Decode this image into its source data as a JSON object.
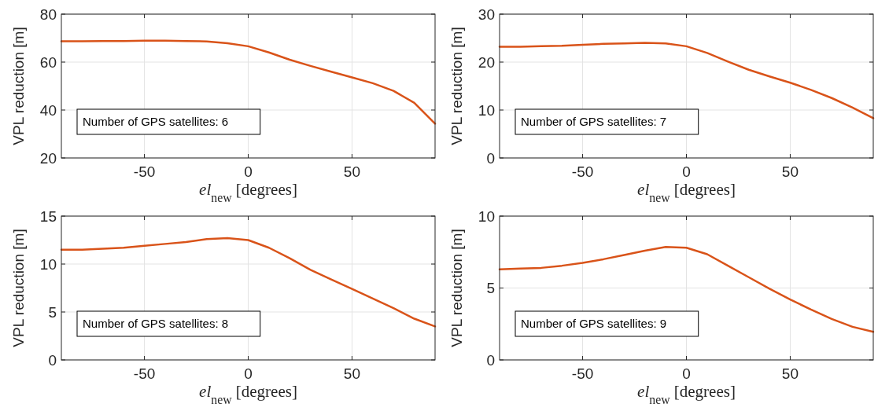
{
  "chart_data": [
    {
      "type": "line",
      "x": [
        -90,
        -80,
        -70,
        -60,
        -50,
        -40,
        -30,
        -20,
        -10,
        0,
        10,
        20,
        30,
        40,
        50,
        60,
        70,
        80,
        90
      ],
      "series": [
        {
          "color": "#d95319",
          "values": [
            68.7,
            68.7,
            68.8,
            68.8,
            68.9,
            68.9,
            68.8,
            68.6,
            67.9,
            66.6,
            64,
            61,
            58.4,
            56,
            53.6,
            51.2,
            48,
            43,
            34.3
          ]
        }
      ],
      "xlim": [
        -90,
        90
      ],
      "xticks": [
        -50,
        0,
        50
      ],
      "ylim": [
        20,
        80
      ],
      "yticks": [
        20,
        40,
        60,
        80
      ],
      "xlabel": "el$_{new}$ [degrees]",
      "ylabel": "VPL reduction [m]",
      "annotations": [
        "Number of GPS satellites: 6"
      ],
      "grid": true
    },
    {
      "type": "line",
      "x": [
        -90,
        -80,
        -70,
        -60,
        -50,
        -40,
        -30,
        -20,
        -10,
        0,
        10,
        20,
        30,
        40,
        50,
        60,
        70,
        80,
        90
      ],
      "series": [
        {
          "color": "#d95319",
          "values": [
            23.2,
            23.2,
            23.3,
            23.4,
            23.6,
            23.8,
            23.9,
            24.0,
            23.9,
            23.3,
            21.9,
            20.1,
            18.4,
            17,
            15.7,
            14.2,
            12.5,
            10.5,
            8.3
          ]
        }
      ],
      "xlim": [
        -90,
        90
      ],
      "xticks": [
        -50,
        0,
        50
      ],
      "ylim": [
        0,
        30
      ],
      "yticks": [
        0,
        10,
        20,
        30
      ],
      "xlabel": "el$_{new}$ [degrees]",
      "ylabel": "VPL reduction [m]",
      "annotations": [
        "Number of GPS satellites: 7"
      ],
      "grid": true
    },
    {
      "type": "line",
      "x": [
        -90,
        -80,
        -70,
        -60,
        -50,
        -40,
        -30,
        -20,
        -10,
        0,
        10,
        20,
        30,
        40,
        50,
        60,
        70,
        80,
        90
      ],
      "series": [
        {
          "color": "#d95319",
          "values": [
            11.5,
            11.5,
            11.6,
            11.7,
            11.9,
            12.1,
            12.3,
            12.6,
            12.7,
            12.5,
            11.7,
            10.6,
            9.4,
            8.4,
            7.4,
            6.4,
            5.4,
            4.3,
            3.5
          ]
        }
      ],
      "xlim": [
        -90,
        90
      ],
      "xticks": [
        -50,
        0,
        50
      ],
      "ylim": [
        0,
        15
      ],
      "yticks": [
        0,
        5,
        10,
        15
      ],
      "xlabel": "el$_{new}$ [degrees]",
      "ylabel": "VPL reduction [m]",
      "annotations": [
        "Number of GPS satellites: 8"
      ],
      "grid": true
    },
    {
      "type": "line",
      "x": [
        -90,
        -80,
        -70,
        -60,
        -50,
        -40,
        -30,
        -20,
        -10,
        0,
        10,
        20,
        30,
        40,
        50,
        60,
        70,
        80,
        90
      ],
      "series": [
        {
          "color": "#d95319",
          "values": [
            6.3,
            6.35,
            6.4,
            6.55,
            6.75,
            7.0,
            7.3,
            7.6,
            7.85,
            7.8,
            7.35,
            6.55,
            5.75,
            4.95,
            4.2,
            3.5,
            2.85,
            2.3,
            1.95
          ]
        }
      ],
      "xlim": [
        -90,
        90
      ],
      "xticks": [
        -50,
        0,
        50
      ],
      "ylim": [
        0,
        10
      ],
      "yticks": [
        0,
        5,
        10
      ],
      "xlabel": "el$_{new}$ [degrees]",
      "ylabel": "VPL reduction [m]",
      "annotations": [
        "Number of GPS satellites: 9"
      ],
      "grid": true
    }
  ]
}
